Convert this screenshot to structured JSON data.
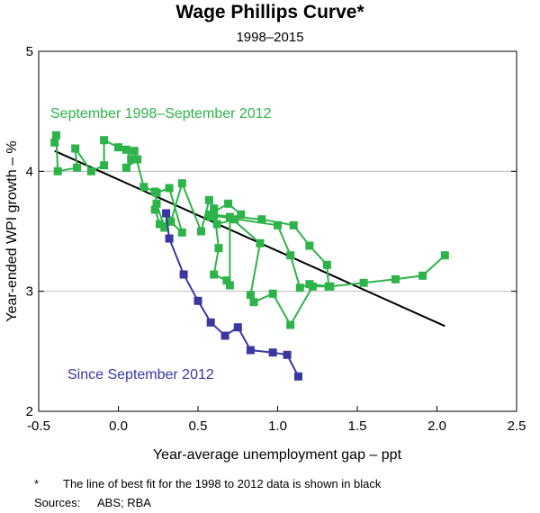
{
  "chart_data": {
    "type": "scatter",
    "title": "Wage Phillips Curve*",
    "subtitle": "1998–2015",
    "xlabel": "Year-average unemployment gap – ppt",
    "ylabel": "Year-ended WPI growth – %",
    "xlim": [
      -0.5,
      2.5
    ],
    "ylim": [
      2,
      5
    ],
    "xticks": [
      -0.5,
      0.0,
      0.5,
      1.0,
      1.5,
      2.0,
      2.5
    ],
    "xtick_labels": [
      "-0.5",
      "0.0",
      "0.5",
      "1.0",
      "1.5",
      "2.0",
      "2.5"
    ],
    "yticks": [
      2,
      3,
      4,
      5
    ],
    "ytick_labels": [
      "2",
      "3",
      "4",
      "5"
    ],
    "grid": "horizontal",
    "series": [
      {
        "name": "September 1998–September 2012",
        "color": "#2db34a",
        "x": [
          -0.4,
          -0.39,
          -0.38,
          -0.26,
          -0.27,
          -0.17,
          -0.09,
          -0.09,
          0.0,
          0.05,
          0.08,
          0.05,
          0.12,
          0.1,
          0.16,
          0.23,
          0.24,
          0.29,
          0.32,
          0.4,
          0.32,
          0.24,
          0.23,
          0.26,
          0.33,
          0.4,
          0.52,
          0.57,
          0.6,
          0.63,
          0.6,
          0.68,
          0.7,
          0.7,
          0.89,
          0.83,
          0.85,
          0.97,
          1.08,
          1.22,
          1.32,
          1.31,
          1.2,
          1.1,
          0.9,
          0.57,
          0.69,
          0.77,
          0.73,
          0.62,
          0.58,
          0.6,
          1.0,
          1.08,
          1.14,
          1.2,
          1.33,
          1.54,
          1.74,
          1.91,
          2.05
        ],
        "y": [
          4.24,
          4.3,
          4.0,
          4.03,
          4.19,
          4.0,
          4.05,
          4.26,
          4.2,
          4.18,
          4.1,
          4.03,
          4.1,
          4.17,
          3.87,
          3.83,
          3.73,
          3.53,
          3.59,
          3.49,
          3.86,
          3.82,
          3.68,
          3.56,
          3.58,
          3.9,
          3.5,
          3.76,
          3.69,
          3.36,
          3.14,
          3.09,
          3.05,
          3.62,
          3.4,
          2.97,
          2.91,
          2.98,
          2.72,
          3.04,
          3.04,
          3.22,
          3.38,
          3.55,
          3.6,
          3.64,
          3.73,
          3.64,
          3.6,
          3.56,
          3.62,
          3.63,
          3.55,
          3.3,
          3.03,
          3.06,
          3.04,
          3.07,
          3.1,
          3.13,
          3.3
        ]
      },
      {
        "name": "Since September 2012",
        "color": "#3a37a0",
        "x": [
          0.3,
          0.32,
          0.41,
          0.5,
          0.58,
          0.67,
          0.75,
          0.83,
          0.97,
          1.06,
          1.13
        ],
        "y": [
          3.65,
          3.44,
          3.14,
          2.92,
          2.74,
          2.63,
          2.7,
          2.51,
          2.49,
          2.47,
          2.29
        ]
      }
    ],
    "fit_line": {
      "x": [
        -0.4,
        2.05
      ],
      "y": [
        4.17,
        2.71
      ],
      "color": "#000000"
    },
    "annotations": {
      "green_label": "September 1998–September 2012",
      "blue_label": "Since September 2012"
    }
  },
  "footnote": {
    "marker": "*",
    "text": "The line of best fit for the 1998 to 2012 data is shown in black",
    "sources_label": "Sources:",
    "sources_text": "ABS; RBA"
  }
}
